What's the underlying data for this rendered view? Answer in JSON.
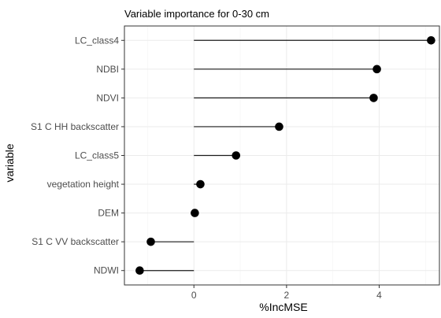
{
  "chart_data": {
    "type": "lollipop",
    "title": "Variable importance for 0-30 cm",
    "xlabel": "%IncMSE",
    "ylabel": "variable",
    "xlim": [
      -1.5,
      5.3
    ],
    "xticks": [
      0,
      2,
      4
    ],
    "grid": true,
    "baseline": 0,
    "categories": [
      "LC_class4",
      "NDBI",
      "NDVI",
      "S1 C HH backscatter",
      "LC_class5",
      "vegetation height",
      "DEM",
      "S1 C VV backscatter",
      "NDWI"
    ],
    "values": [
      5.12,
      3.95,
      3.88,
      1.84,
      0.91,
      0.14,
      0.02,
      -0.93,
      -1.17
    ]
  }
}
